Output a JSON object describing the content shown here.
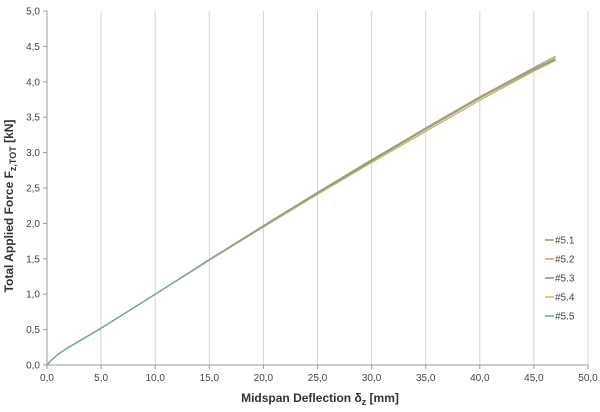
{
  "chart_data": {
    "type": "line",
    "xlabel": "Midspan Deflection δ",
    "xlabel_sub": "z",
    "xlabel_unit": " [mm]",
    "ylabel": "Total Applied Force F",
    "ylabel_sub": "z,TOT",
    "ylabel_unit": " [kN]",
    "xlim": [
      0,
      50
    ],
    "ylim": [
      0,
      5
    ],
    "x_ticks": [
      "0,0",
      "5,0",
      "10,0",
      "15,0",
      "20,0",
      "25,0",
      "30,0",
      "35,0",
      "40,0",
      "45,0",
      "50,0"
    ],
    "y_ticks": [
      "0,0",
      "0,5",
      "1,0",
      "1,5",
      "2,0",
      "2,5",
      "3,0",
      "3,5",
      "4,0",
      "4,5",
      "5,0"
    ],
    "grid": "vertical",
    "legend_position": "bottom-right",
    "series": [
      {
        "name": "#5.1",
        "color": "#8aa05a",
        "x": [
          0,
          0.5,
          1,
          2,
          3,
          5,
          10,
          15,
          20,
          25,
          30,
          35,
          40,
          45,
          47
        ],
        "y": [
          0,
          0.08,
          0.15,
          0.25,
          0.34,
          0.52,
          1.0,
          1.48,
          1.95,
          2.42,
          2.88,
          3.33,
          3.78,
          4.2,
          4.36
        ]
      },
      {
        "name": "#5.2",
        "color": "#c8a060",
        "x": [
          0,
          0.5,
          1,
          2,
          3,
          5,
          10,
          15,
          20,
          25,
          30,
          35,
          40,
          45,
          47
        ],
        "y": [
          0,
          0.08,
          0.15,
          0.25,
          0.34,
          0.52,
          1.0,
          1.49,
          1.97,
          2.44,
          2.9,
          3.35,
          3.79,
          4.2,
          4.36
        ]
      },
      {
        "name": "#5.3",
        "color": "#7e8c8c",
        "x": [
          0,
          0.5,
          1,
          2,
          3,
          5,
          10,
          15,
          20,
          25,
          30,
          35,
          40,
          45,
          47
        ],
        "y": [
          0,
          0.08,
          0.15,
          0.25,
          0.34,
          0.52,
          1.0,
          1.48,
          1.95,
          2.41,
          2.86,
          3.3,
          3.74,
          4.16,
          4.31
        ]
      },
      {
        "name": "#5.4",
        "color": "#d9b84a",
        "x": [
          0,
          0.5,
          1,
          2,
          3,
          5,
          10,
          15,
          20,
          25,
          30,
          35,
          40,
          45,
          47
        ],
        "y": [
          0,
          0.08,
          0.15,
          0.25,
          0.34,
          0.52,
          1.0,
          1.48,
          1.95,
          2.41,
          2.86,
          3.3,
          3.74,
          4.15,
          4.3
        ]
      },
      {
        "name": "#5.5",
        "color": "#6fa0b8",
        "x": [
          0,
          0.5,
          1,
          2,
          3,
          5,
          10,
          15,
          20,
          25,
          30,
          35,
          40,
          45,
          47
        ],
        "y": [
          0,
          0.08,
          0.15,
          0.25,
          0.34,
          0.52,
          1.0,
          1.49,
          1.96,
          2.43,
          2.89,
          3.33,
          3.77,
          4.18,
          4.33
        ]
      }
    ]
  }
}
